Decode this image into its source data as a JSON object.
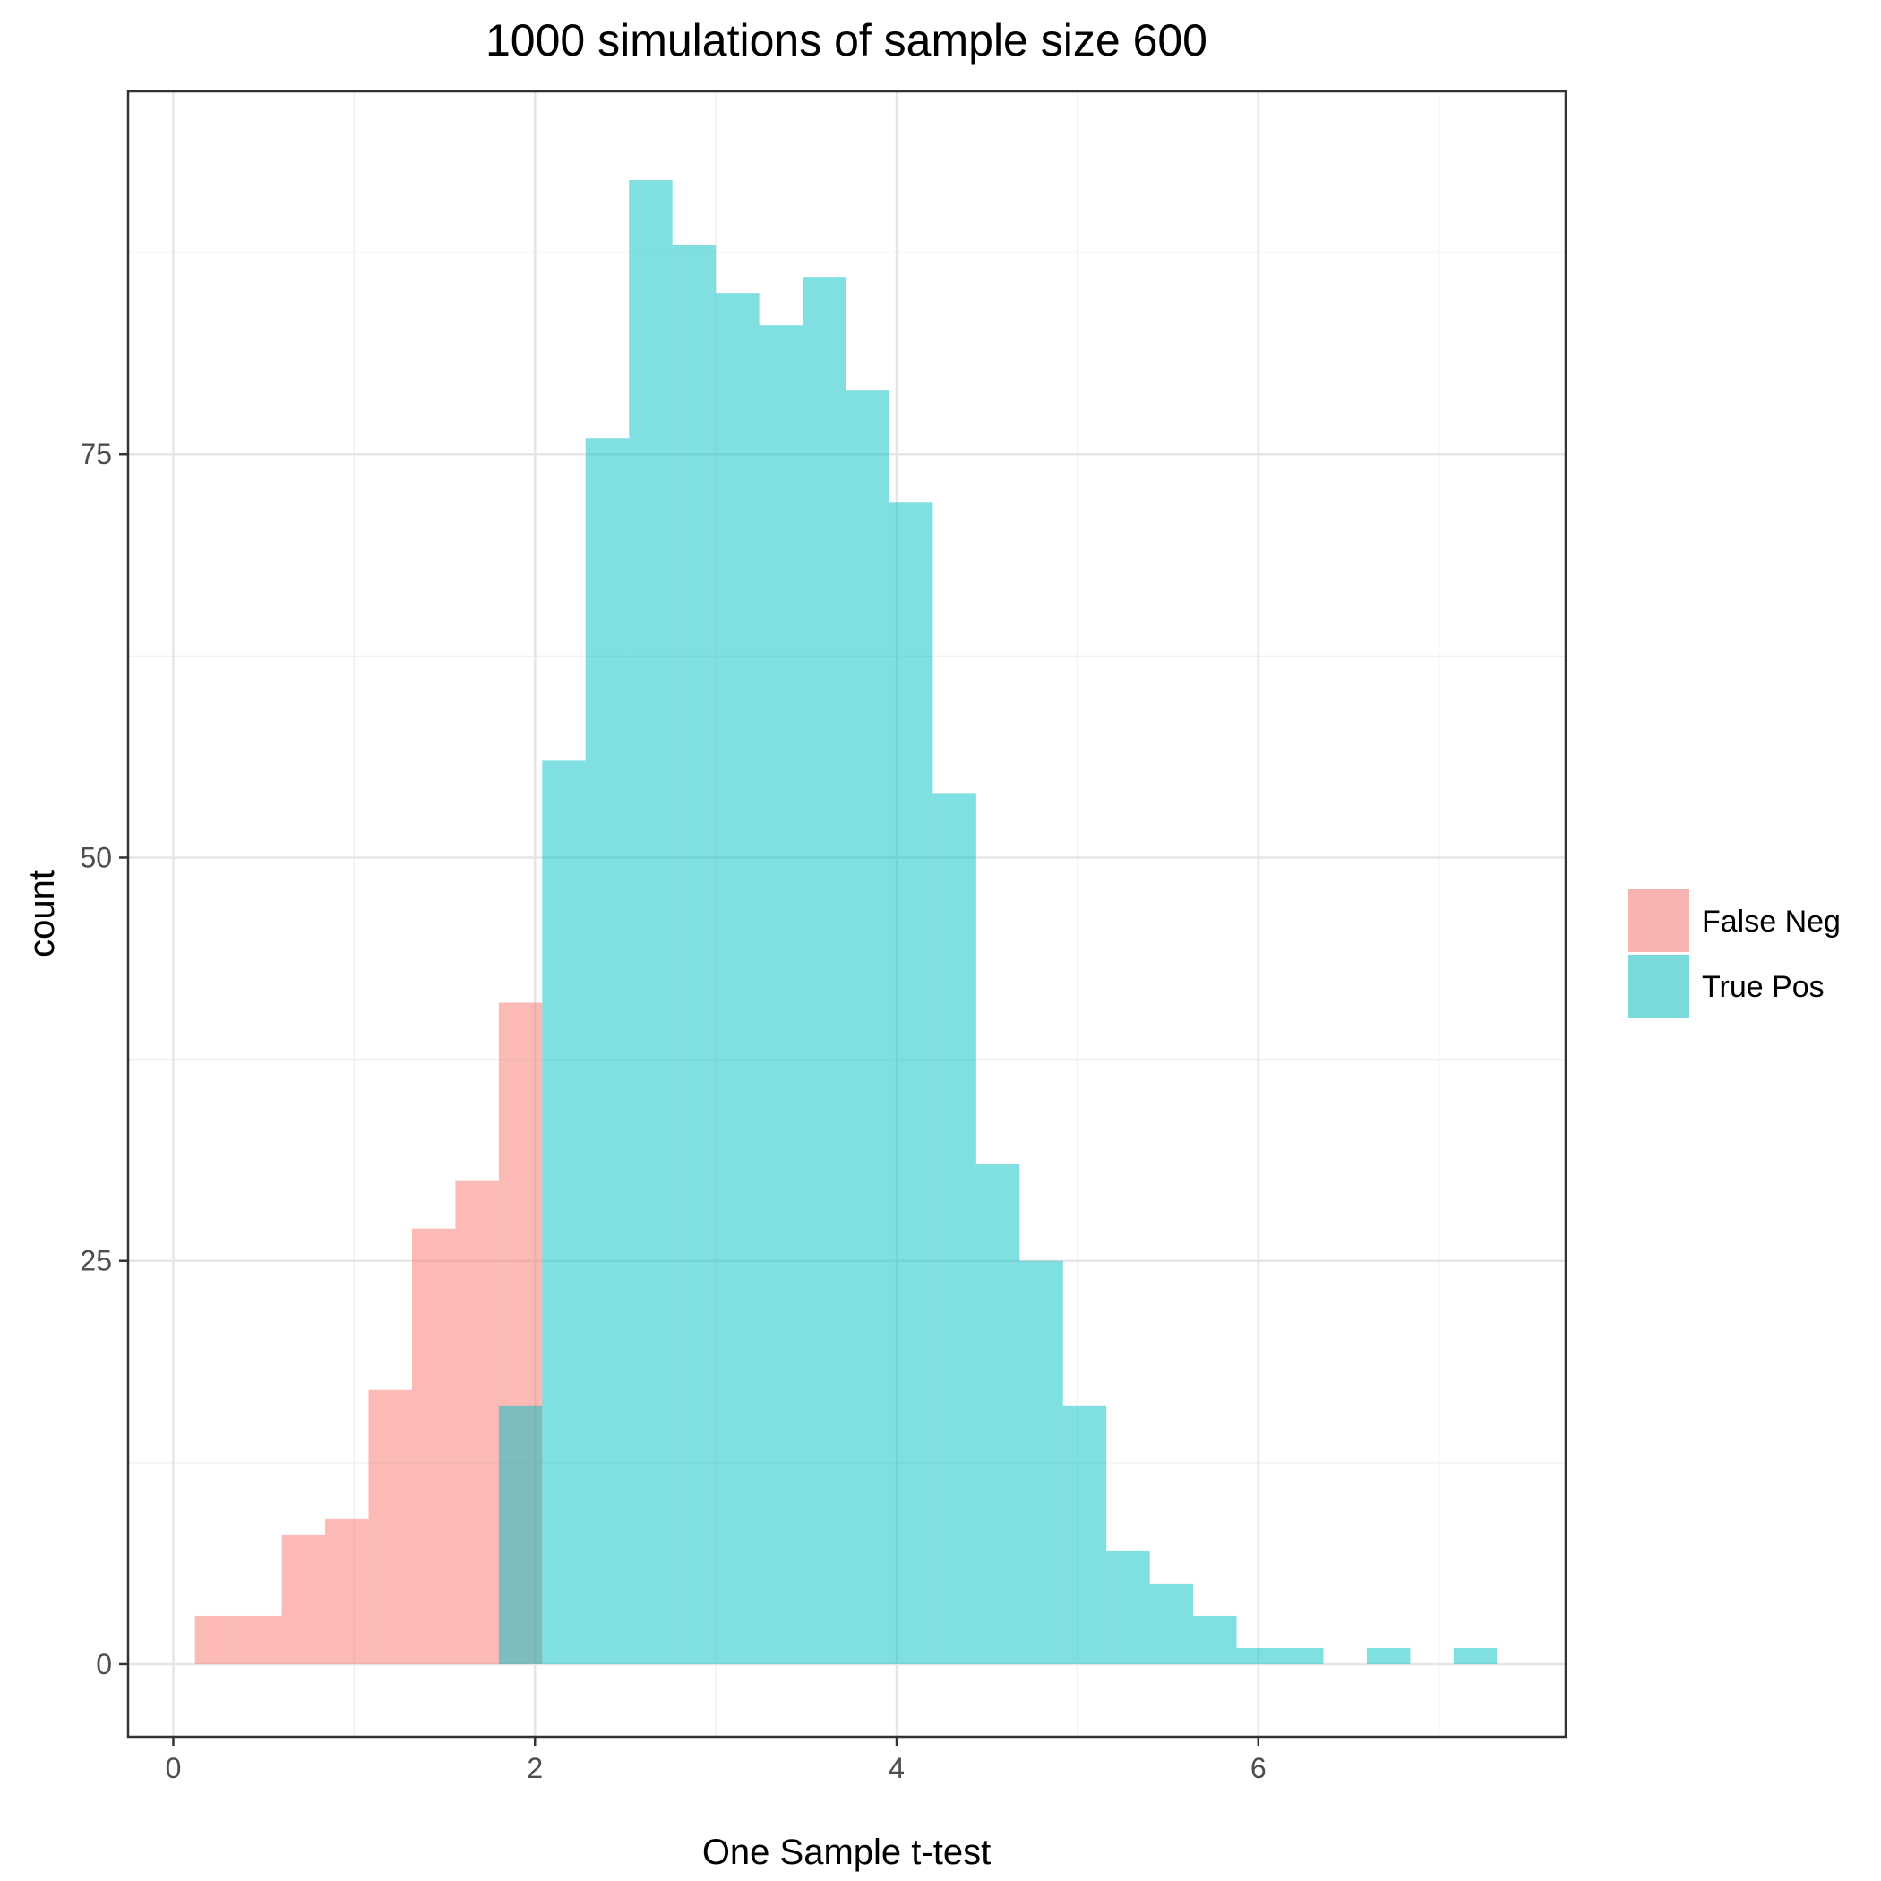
{
  "chart_data": {
    "type": "bar",
    "title": "1000 simulations of sample size 600",
    "xlabel": "One Sample t-test",
    "ylabel": "count",
    "xlim": [
      -0.25,
      7.7
    ],
    "ylim": [
      -4.5,
      97.5
    ],
    "x_ticks": [
      0,
      2,
      4,
      6
    ],
    "y_ticks": [
      0,
      25,
      50,
      75
    ],
    "grid": true,
    "legend_position": "right",
    "series": [
      {
        "name": "False Neg",
        "color": "#F8766D",
        "bins": [
          {
            "x0": 0.12,
            "x1": 0.36,
            "count": 3
          },
          {
            "x0": 0.36,
            "x1": 0.6,
            "count": 3
          },
          {
            "x0": 0.6,
            "x1": 0.84,
            "count": 8
          },
          {
            "x0": 0.84,
            "x1": 1.08,
            "count": 9
          },
          {
            "x0": 1.08,
            "x1": 1.32,
            "count": 17
          },
          {
            "x0": 1.32,
            "x1": 1.56,
            "count": 27
          },
          {
            "x0": 1.56,
            "x1": 1.8,
            "count": 30
          },
          {
            "x0": 1.8,
            "x1": 2.04,
            "count": 41
          }
        ]
      },
      {
        "name": "True Pos",
        "color": "#00BFC4",
        "bins": [
          {
            "x0": 1.8,
            "x1": 2.04,
            "count": 16
          },
          {
            "x0": 2.04,
            "x1": 2.28,
            "count": 56
          },
          {
            "x0": 2.28,
            "x1": 2.52,
            "count": 76
          },
          {
            "x0": 2.52,
            "x1": 2.76,
            "count": 92
          },
          {
            "x0": 2.76,
            "x1": 3.0,
            "count": 88
          },
          {
            "x0": 3.0,
            "x1": 3.24,
            "count": 85
          },
          {
            "x0": 3.24,
            "x1": 3.48,
            "count": 83
          },
          {
            "x0": 3.48,
            "x1": 3.72,
            "count": 86
          },
          {
            "x0": 3.72,
            "x1": 3.96,
            "count": 79
          },
          {
            "x0": 3.96,
            "x1": 4.2,
            "count": 72
          },
          {
            "x0": 4.2,
            "x1": 4.44,
            "count": 54
          },
          {
            "x0": 4.44,
            "x1": 4.68,
            "count": 31
          },
          {
            "x0": 4.68,
            "x1": 4.92,
            "count": 25
          },
          {
            "x0": 4.92,
            "x1": 5.16,
            "count": 16
          },
          {
            "x0": 5.16,
            "x1": 5.4,
            "count": 7
          },
          {
            "x0": 5.4,
            "x1": 5.64,
            "count": 5
          },
          {
            "x0": 5.64,
            "x1": 5.88,
            "count": 3
          },
          {
            "x0": 5.88,
            "x1": 6.12,
            "count": 1
          },
          {
            "x0": 6.12,
            "x1": 6.36,
            "count": 1
          },
          {
            "x0": 6.6,
            "x1": 6.84,
            "count": 1
          },
          {
            "x0": 7.08,
            "x1": 7.32,
            "count": 1
          }
        ]
      }
    ]
  }
}
